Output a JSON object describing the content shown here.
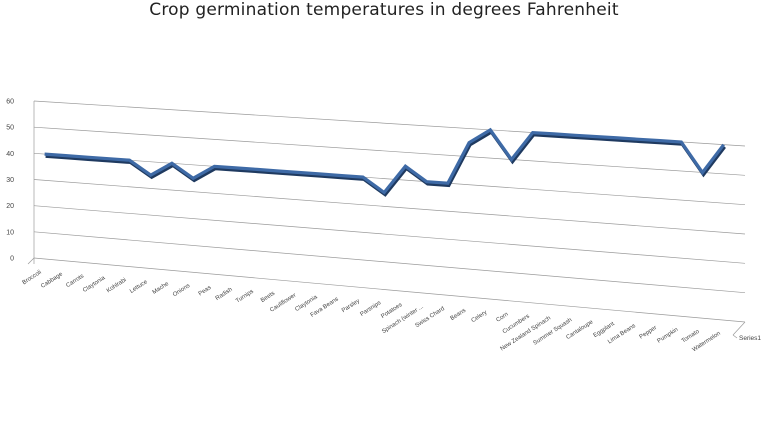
{
  "chart_data": {
    "type": "line",
    "title": "Crop germination temperatures in degrees Fahrenheit",
    "series_label": "Series1",
    "ylim": [
      0,
      60
    ],
    "y_ticks": [
      "0",
      "10",
      "20",
      "30",
      "40",
      "50",
      "60"
    ],
    "grid": true,
    "categories": [
      "Broccoli",
      "Cabbage",
      "Carrots",
      "Claytonia",
      "Kohlrabi",
      "Lettuce",
      "Mache",
      "Onions",
      "Peas",
      "Radish",
      "Turnips",
      "Beets",
      "Cauliflower",
      "Claytonia",
      "Fava Beans",
      "Parsley",
      "Parsnips",
      "Potatoes",
      "Spinach (winter ...",
      "Swiss Chard",
      "Beans",
      "Celery",
      "Corn",
      "Cucumbers",
      "New Zealand Spinach",
      "Summer Squash",
      "Cantaloupe",
      "Eggplant",
      "Lima Beans",
      "Pepper",
      "Pumpkin",
      "Tomato",
      "Watermelon"
    ],
    "series": [
      {
        "name": "Series1",
        "values": [
          40,
          40,
          40,
          40,
          40,
          35,
          40,
          35,
          40,
          40,
          40,
          40,
          40,
          40,
          40,
          40,
          35,
          45,
          40,
          40,
          55,
          60,
          50,
          60,
          60,
          60,
          60,
          60,
          60,
          60,
          60,
          50,
          60
        ]
      }
    ],
    "colors": {
      "line": "#3E6AA6",
      "line_shadow": "#1F3A60",
      "grid": "#9A9A9A"
    }
  }
}
